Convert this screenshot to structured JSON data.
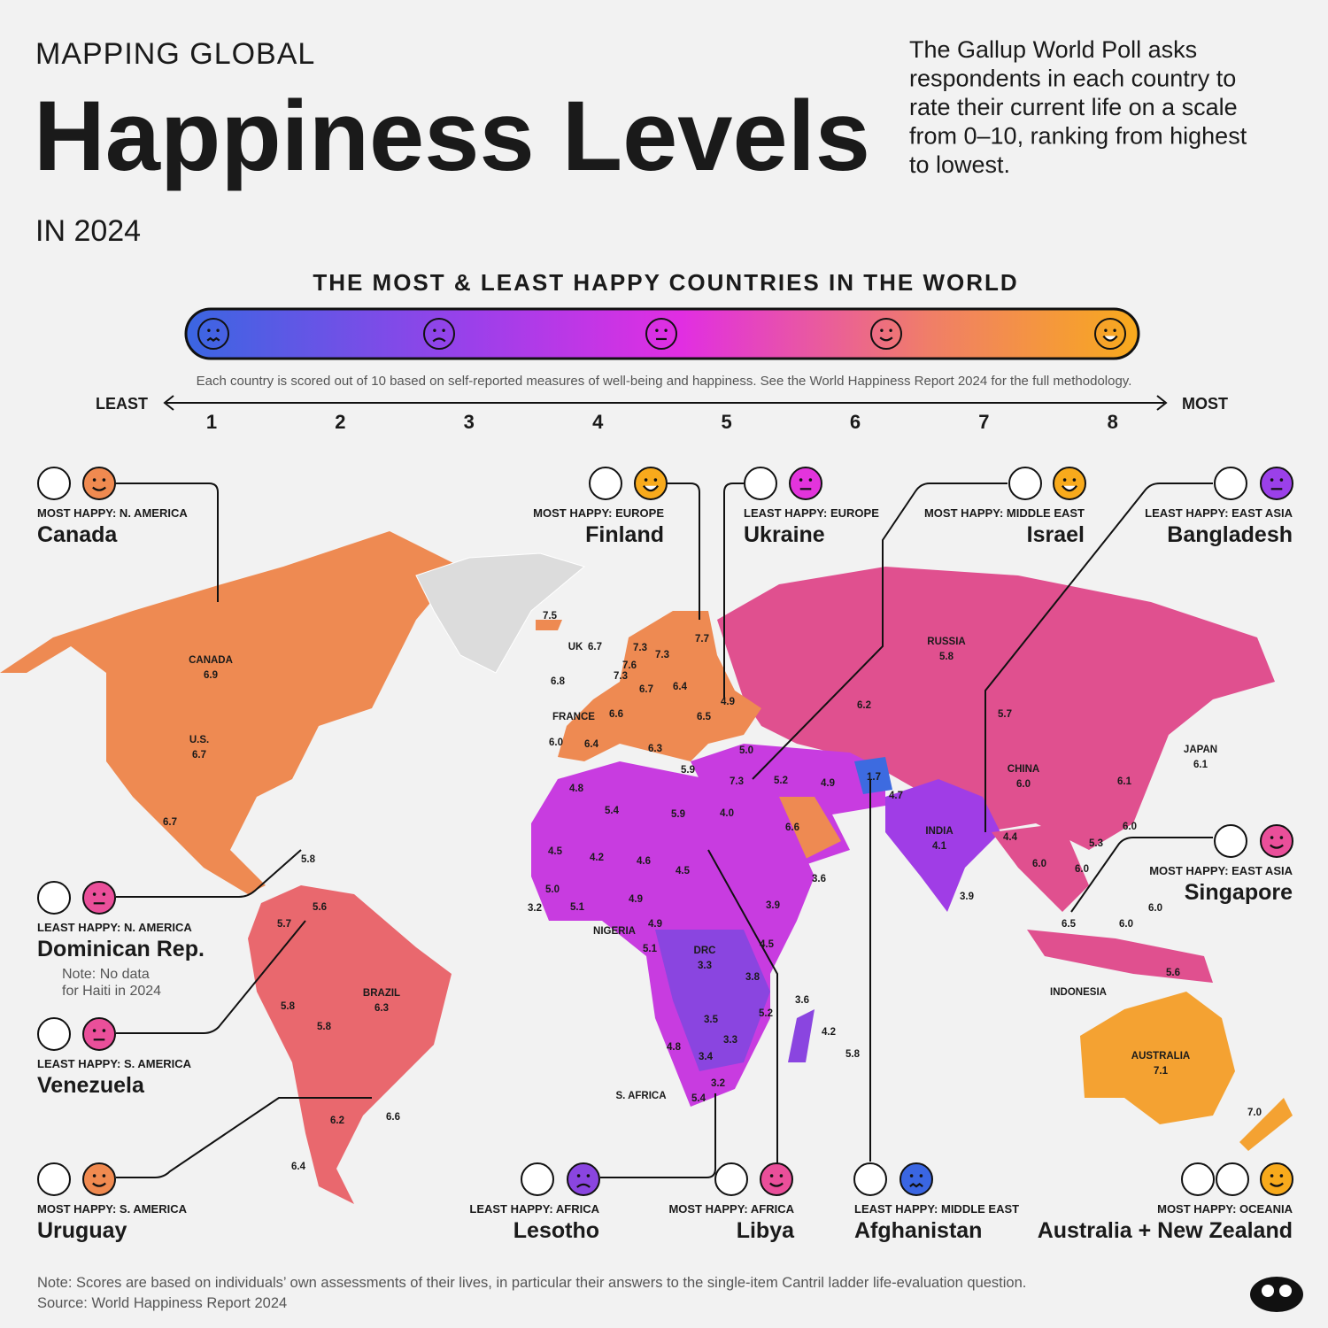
{
  "header": {
    "kicker": "MAPPING GLOBAL",
    "title": "Happiness Levels",
    "year": "IN 2024",
    "description": [
      "The Gallup World Poll asks",
      "respondents in each country to",
      "rate their current life on a scale",
      "from 0–10, ranking from highest",
      "to lowest."
    ]
  },
  "legend": {
    "title": "THE MOST & LEAST HAPPY COUNTRIES IN THE WORLD",
    "note": "Each country is scored out of 10 based on self-reported measures of well-being and happiness. See the World Happiness Report 2024 for the full methodology.",
    "least": "LEAST",
    "most": "MOST",
    "scale": [
      "1",
      "2",
      "3",
      "4",
      "5",
      "6",
      "7",
      "8"
    ]
  },
  "callouts": [
    {
      "region": "MOST HAPPY: N. AMERICA",
      "country": "Canada"
    },
    {
      "region": "MOST HAPPY: EUROPE",
      "country": "Finland"
    },
    {
      "region": "LEAST HAPPY: EUROPE",
      "country": "Ukraine"
    },
    {
      "region": "MOST HAPPY: MIDDLE EAST",
      "country": "Israel"
    },
    {
      "region": "LEAST HAPPY: EAST ASIA",
      "country": "Bangladesh"
    },
    {
      "region": "MOST HAPPY: EAST ASIA",
      "country": "Singapore"
    },
    {
      "region": "LEAST HAPPY: N. AMERICA",
      "country": "Dominican Rep.",
      "note": [
        "Note: No data",
        "for Haiti in 2024"
      ]
    },
    {
      "region": "LEAST HAPPY: S. AMERICA",
      "country": "Venezuela"
    },
    {
      "region": "MOST HAPPY: S. AMERICA",
      "country": "Uruguay"
    },
    {
      "region": "LEAST HAPPY: AFRICA",
      "country": "Lesotho"
    },
    {
      "region": "MOST HAPPY: AFRICA",
      "country": "Libya"
    },
    {
      "region": "LEAST HAPPY: MIDDLE EAST",
      "country": "Afghanistan"
    },
    {
      "region": "MOST HAPPY: OCEANIA",
      "country": "Australia + New Zealand"
    }
  ],
  "map": {
    "labels": [
      {
        "name": "CANADA",
        "value": "6.9"
      },
      {
        "name": "U.S.",
        "value": "6.7"
      },
      {
        "value": "6.7"
      },
      {
        "value": "7.5"
      },
      {
        "name": "UK",
        "value": "6.7"
      },
      {
        "value": "7.3"
      },
      {
        "value": "7.3"
      },
      {
        "value": "7.7"
      },
      {
        "value": "7.6"
      },
      {
        "value": "7.3"
      },
      {
        "value": "6.8"
      },
      {
        "value": "6.7"
      },
      {
        "value": "6.4"
      },
      {
        "value": "4.9"
      },
      {
        "name": "FRANCE"
      },
      {
        "value": "6.6"
      },
      {
        "value": "6.5"
      },
      {
        "value": "6.0"
      },
      {
        "value": "6.4"
      },
      {
        "value": "6.3"
      },
      {
        "value": "5.0"
      },
      {
        "value": "5.9"
      },
      {
        "value": "7.3"
      },
      {
        "value": "5.2"
      },
      {
        "value": "4.9"
      },
      {
        "value": "1.7"
      },
      {
        "value": "4.7"
      },
      {
        "name": "RUSSIA",
        "value": "5.8"
      },
      {
        "value": "6.2"
      },
      {
        "value": "5.7"
      },
      {
        "name": "CHINA",
        "value": "6.0"
      },
      {
        "name": "JAPAN",
        "value": "6.1"
      },
      {
        "value": "6.1"
      },
      {
        "value": "6.0"
      },
      {
        "value": "5.3"
      },
      {
        "value": "6.0"
      },
      {
        "value": "6.0"
      },
      {
        "value": "4.4"
      },
      {
        "name": "INDIA",
        "value": "4.1"
      },
      {
        "value": "3.9"
      },
      {
        "value": "4.8"
      },
      {
        "value": "5.4"
      },
      {
        "value": "5.9"
      },
      {
        "value": "4.0"
      },
      {
        "value": "6.6"
      },
      {
        "value": "3.6"
      },
      {
        "value": "4.5"
      },
      {
        "value": "4.2"
      },
      {
        "value": "4.6"
      },
      {
        "value": "4.5"
      },
      {
        "value": "5.0"
      },
      {
        "value": "3.2"
      },
      {
        "value": "5.1"
      },
      {
        "value": "4.9"
      },
      {
        "name": "NIGERIA"
      },
      {
        "value": "4.9"
      },
      {
        "value": "3.9"
      },
      {
        "value": "5.1"
      },
      {
        "name": "DRC",
        "value": "3.3"
      },
      {
        "value": "4.5"
      },
      {
        "value": "3.8"
      },
      {
        "value": "3.6"
      },
      {
        "value": "5.2"
      },
      {
        "value": "3.5"
      },
      {
        "value": "3.3"
      },
      {
        "value": "4.2"
      },
      {
        "value": "4.8"
      },
      {
        "value": "3.4"
      },
      {
        "value": "5.8"
      },
      {
        "value": "3.2"
      },
      {
        "name": "S. AFRICA"
      },
      {
        "value": "5.4"
      },
      {
        "value": "5.8"
      },
      {
        "value": "5.6"
      },
      {
        "value": "5.7"
      },
      {
        "name": "BRAZIL",
        "value": "6.3"
      },
      {
        "value": "5.8"
      },
      {
        "value": "5.8"
      },
      {
        "value": "6.2"
      },
      {
        "value": "6.6"
      },
      {
        "value": "6.4"
      },
      {
        "value": "6.5"
      },
      {
        "value": "6.0"
      },
      {
        "value": "6.0"
      },
      {
        "name": "INDONESIA"
      },
      {
        "value": "5.6"
      },
      {
        "name": "AUSTRALIA",
        "value": "7.1"
      },
      {
        "value": "7.0"
      }
    ]
  },
  "footer": {
    "note": "Note: Scores are based on individuals’ own assessments of their lives, in particular their answers to the single-item Cantril ladder life-evaluation question.",
    "source": "Source: World Happiness Report 2024"
  }
}
